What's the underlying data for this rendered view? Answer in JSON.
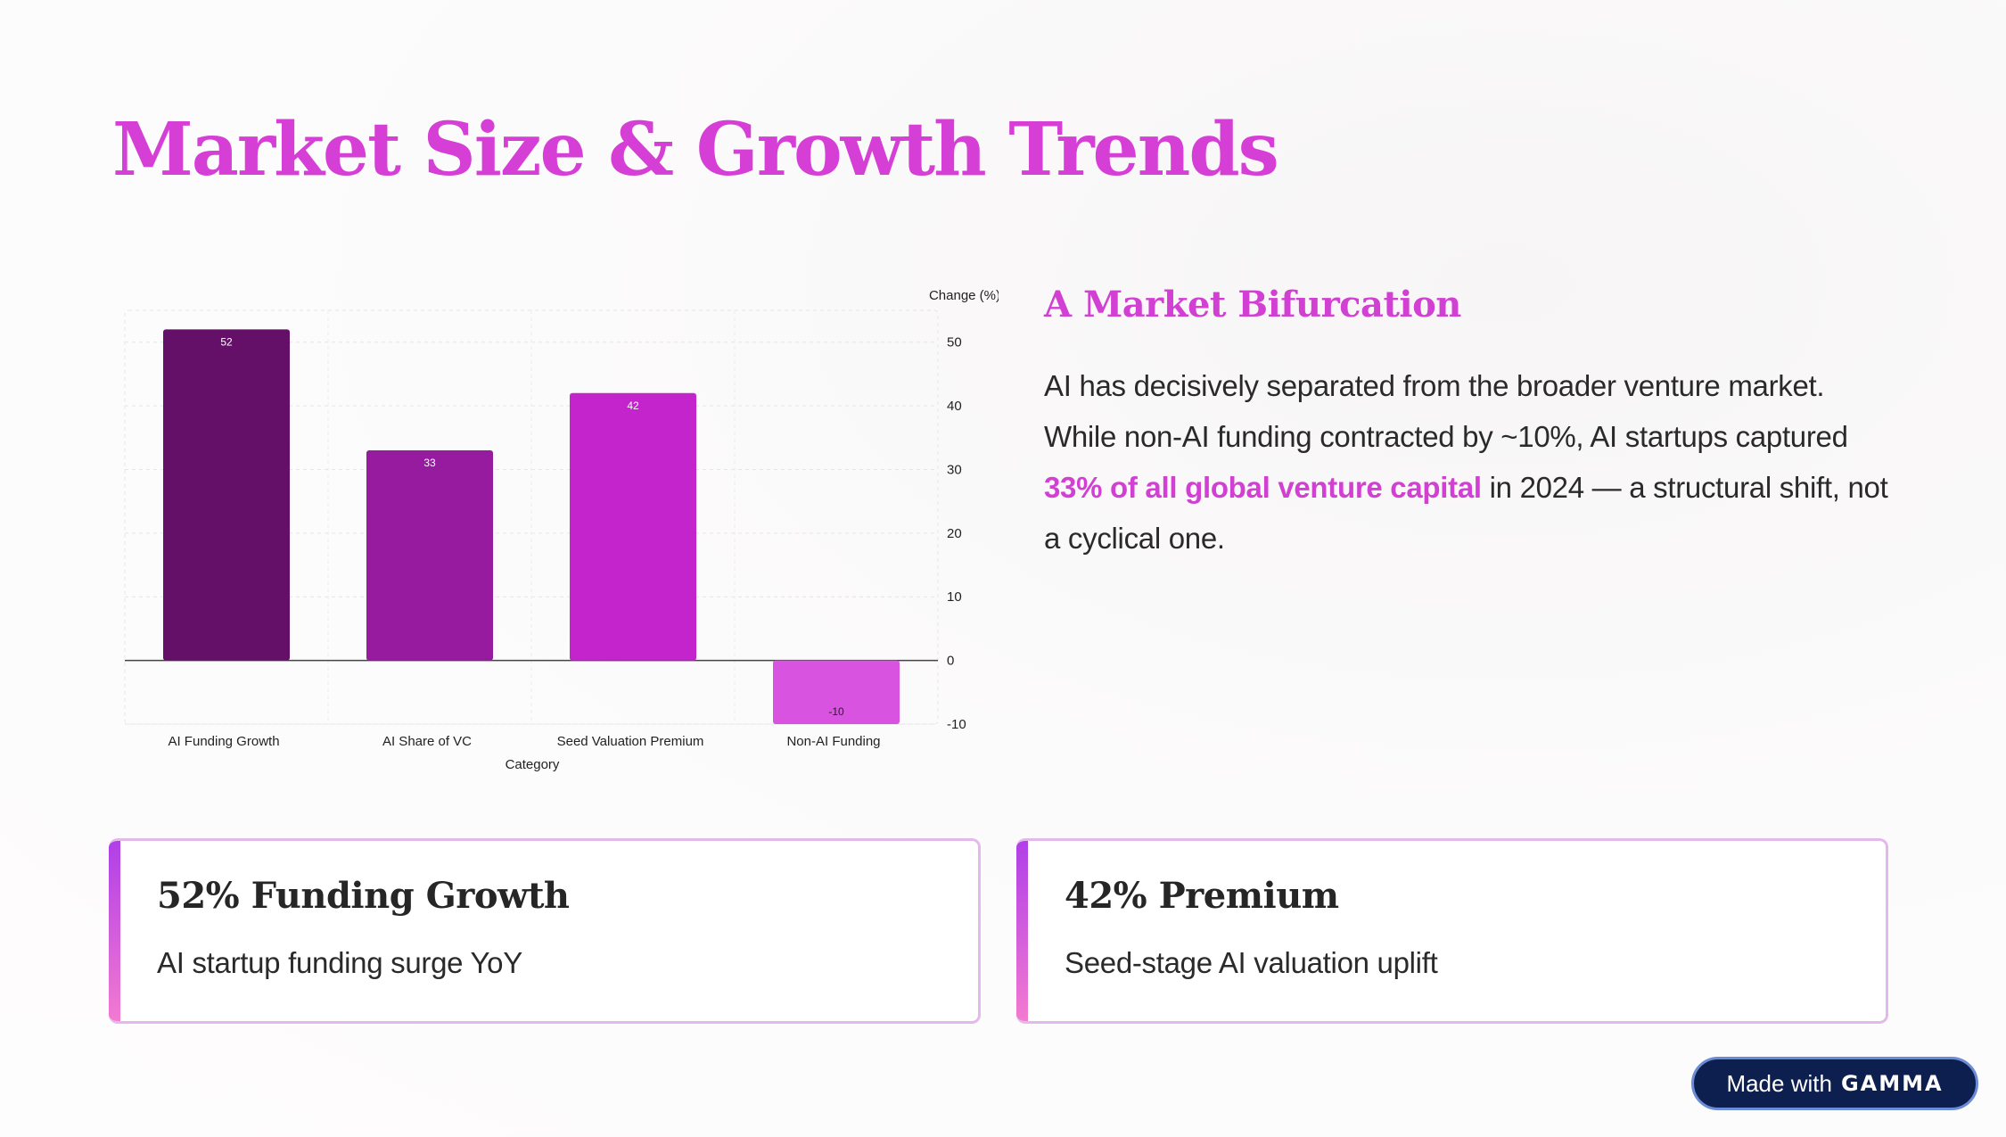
{
  "page": {
    "title": "Market Size & Growth Trends"
  },
  "side": {
    "heading": "A Market Bifurcation",
    "body_before": "AI has decisively separated from the broader venture market. While non-AI funding contracted by ~10%, AI startups captured ",
    "body_highlight": "33% of all global venture capital",
    "body_after": " in 2024 — a structural shift, not a cyclical one."
  },
  "cards": [
    {
      "title": "52% Funding Growth",
      "text": "AI startup funding surge YoY"
    },
    {
      "title": "42% Premium",
      "text": "Seed-stage AI valuation uplift"
    }
  ],
  "badge": {
    "prefix": "Made with",
    "brand": "GAMMA"
  },
  "chart_data": {
    "type": "bar",
    "categories": [
      "AI Funding Growth",
      "AI Share of VC",
      "Seed Valuation Premium",
      "Non-AI Funding"
    ],
    "values": [
      52,
      33,
      42,
      -10
    ],
    "colors": [
      "#641069",
      "#961b9f",
      "#c424cc",
      "#d753e0"
    ],
    "xlabel": "Category",
    "ylabel": "Change (%)",
    "ylim": [
      -10,
      55
    ],
    "yticks": [
      -10,
      0,
      10,
      20,
      30,
      40,
      50
    ],
    "y_axis_side": "right",
    "grid": true,
    "data_labels": true
  }
}
